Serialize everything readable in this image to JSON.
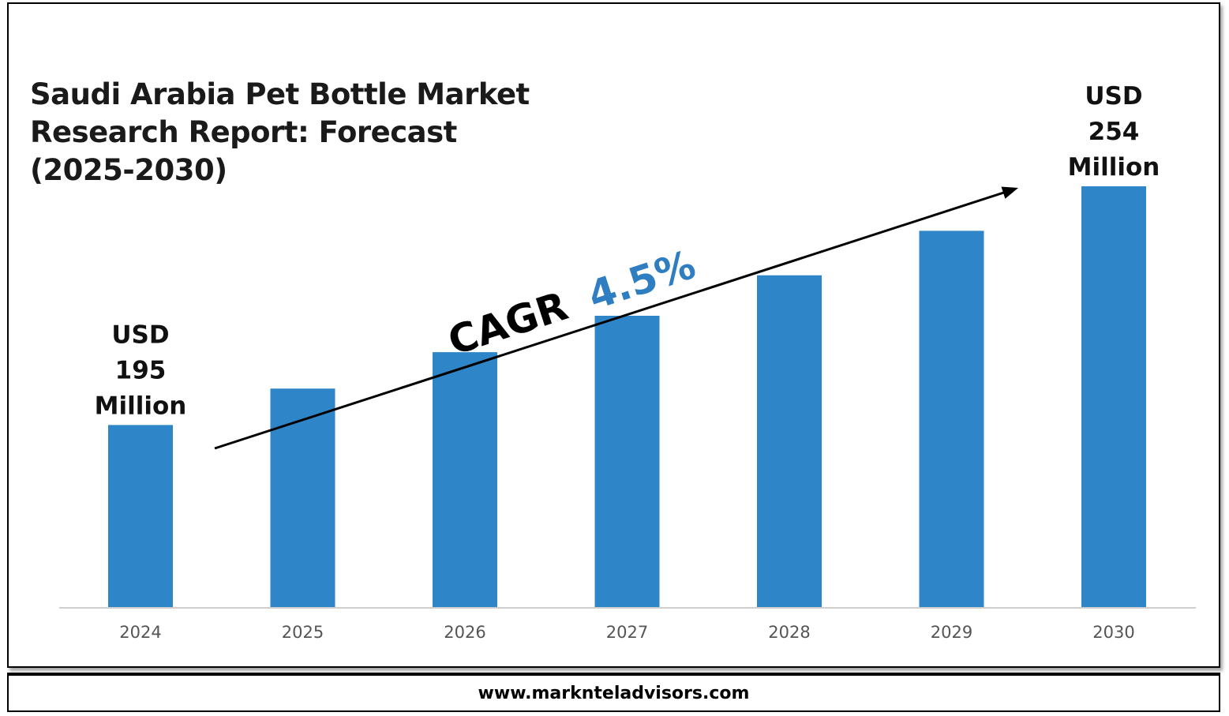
{
  "title": "Saudi Arabia Pet Bottle Market Research Report: Forecast (2025-2030)",
  "footer": {
    "website": "www.marknteladvisors.com"
  },
  "colors": {
    "bar": "#2e86c8",
    "cagr_value": "#2e7ec1"
  },
  "cagr": {
    "label": "CAGR",
    "value": "4.5%"
  },
  "chart_data": {
    "type": "bar",
    "title": "Saudi Arabia Pet Bottle Market Research Report: Forecast (2025-2030)",
    "categories": [
      "2024",
      "2025",
      "2026",
      "2027",
      "2028",
      "2029",
      "2030"
    ],
    "values": [
      195,
      204,
      213,
      222,
      232,
      243,
      254
    ],
    "unit": "USD Million",
    "ylim": [
      150,
      260
    ],
    "grid": false,
    "legend": "none",
    "annotations": [
      {
        "category": "2024",
        "lines": [
          "USD",
          "195",
          "Million"
        ]
      },
      {
        "category": "2030",
        "lines": [
          "USD",
          "254",
          "Million"
        ]
      }
    ]
  }
}
